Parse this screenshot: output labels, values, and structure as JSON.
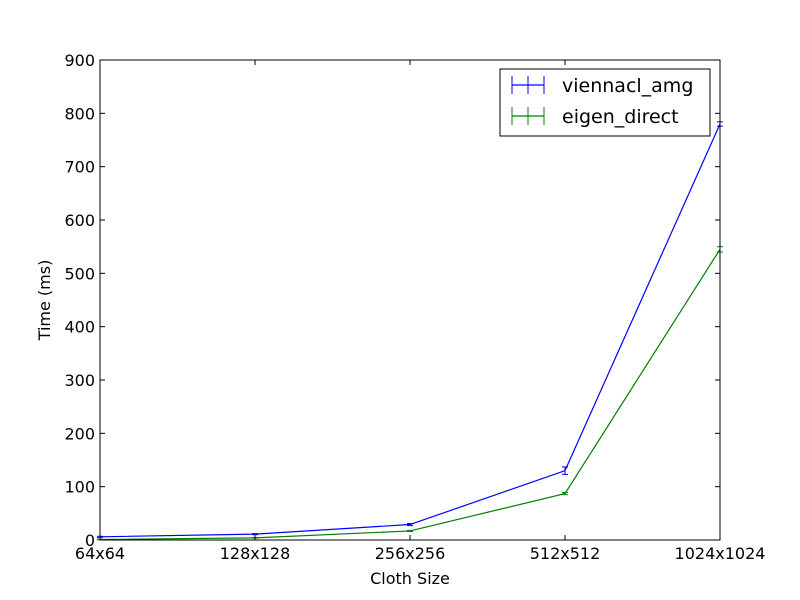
{
  "chart_data": {
    "type": "line",
    "title": "",
    "xlabel": "Cloth Size",
    "ylabel": "Time (ms)",
    "categories": [
      "64x64",
      "128x128",
      "256x256",
      "512x512",
      "1024x1024"
    ],
    "ylim": [
      0,
      900
    ],
    "yticks": [
      0,
      100,
      200,
      300,
      400,
      500,
      600,
      700,
      800,
      900
    ],
    "grid": false,
    "legend_position": "top-right",
    "error_bars": true,
    "series": [
      {
        "name": "viennacl_amg",
        "color": "#0000ff",
        "values": [
          6,
          11,
          29,
          130,
          780
        ],
        "errors": [
          1,
          1,
          2,
          7,
          4
        ]
      },
      {
        "name": "eigen_direct",
        "color": "#008000",
        "values": [
          1,
          4,
          17,
          87,
          545
        ],
        "errors": [
          0.5,
          0.5,
          1,
          2,
          5
        ]
      }
    ]
  }
}
